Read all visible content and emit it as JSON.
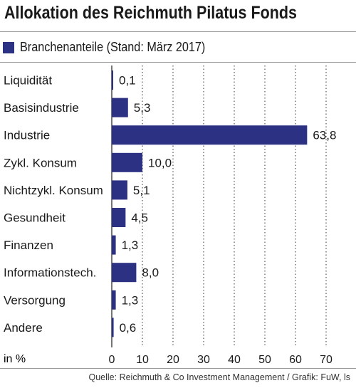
{
  "title": "Allokation des Reichmuth Pilatus Fonds",
  "legend": {
    "label": "Branchenanteile (Stand: März 2017)",
    "color": "#2d3183"
  },
  "source": "Quelle: Reichmuth & Co Investment Management / Grafik: FuW, ls",
  "chart_data": {
    "type": "bar",
    "orientation": "horizontal",
    "categories": [
      "Liquidität",
      "Basisindustrie",
      "Industrie",
      "Zykl. Konsum",
      "Nichtzykl. Konsum",
      "Gesundheit",
      "Finanzen",
      "Informationstech.",
      "Versorgung",
      "Andere"
    ],
    "values": [
      0.1,
      5.3,
      63.8,
      10.0,
      5.1,
      4.5,
      1.3,
      8.0,
      1.3,
      0.6
    ],
    "value_labels": [
      "0,1",
      "5,3",
      "63,8",
      "10,0",
      "5,1",
      "4,5",
      "1,3",
      "8,0",
      "1,3",
      "0,6"
    ],
    "xlabel": "in %",
    "xticks": [
      0,
      10,
      20,
      30,
      40,
      50,
      60,
      70
    ],
    "xlim": [
      0,
      75
    ],
    "grid": "vertical dotted",
    "bar_color": "#2d3183"
  }
}
